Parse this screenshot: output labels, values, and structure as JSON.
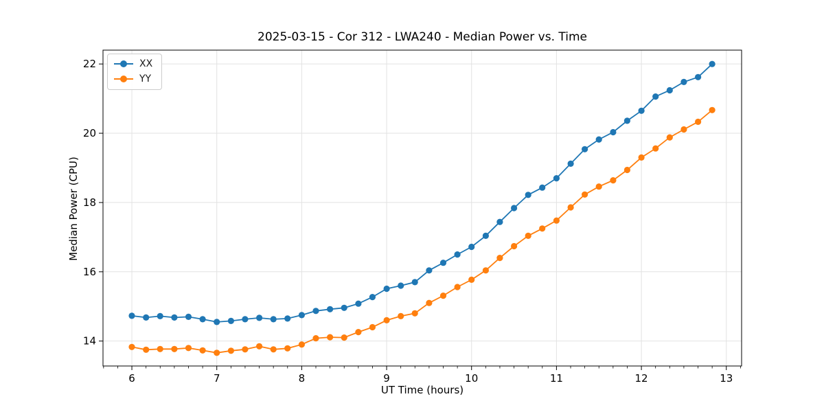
{
  "chart_data": {
    "type": "line",
    "title": "2025-03-15 - Cor 312 - LWA240 - Median Power vs. Time",
    "xlabel": "UT Time (hours)",
    "ylabel": "Median Power (CPU)",
    "xlim": [
      5.66,
      13.18
    ],
    "ylim": [
      13.28,
      22.4
    ],
    "xticks": [
      6,
      7,
      8,
      9,
      10,
      11,
      12,
      13
    ],
    "yticks": [
      14,
      16,
      18,
      20,
      22
    ],
    "x_minor_tick_step": 0.1667,
    "grid": true,
    "grid_color": "#e2e2e2",
    "legend_position": "upper left",
    "x": [
      6.0,
      6.167,
      6.333,
      6.5,
      6.667,
      6.833,
      7.0,
      7.167,
      7.333,
      7.5,
      7.667,
      7.833,
      8.0,
      8.167,
      8.333,
      8.5,
      8.667,
      8.833,
      9.0,
      9.167,
      9.333,
      9.5,
      9.667,
      9.833,
      10.0,
      10.167,
      10.333,
      10.5,
      10.667,
      10.833,
      11.0,
      11.167,
      11.333,
      11.5,
      11.667,
      11.833,
      12.0,
      12.167,
      12.333,
      12.5,
      12.667,
      12.833
    ],
    "series": [
      {
        "name": "XX",
        "color": "#1f77b4",
        "values": [
          14.73,
          14.68,
          14.72,
          14.68,
          14.7,
          14.63,
          14.55,
          14.58,
          14.63,
          14.67,
          14.63,
          14.65,
          14.75,
          14.87,
          14.92,
          14.96,
          15.08,
          15.27,
          15.51,
          15.6,
          15.7,
          16.04,
          16.26,
          16.5,
          16.72,
          17.04,
          17.44,
          17.84,
          18.22,
          18.43,
          18.7,
          19.12,
          19.54,
          19.82,
          20.03,
          20.36,
          20.65,
          21.06,
          21.24,
          21.48,
          21.62,
          22.0
        ]
      },
      {
        "name": "YY",
        "color": "#ff7f0e",
        "values": [
          13.83,
          13.75,
          13.77,
          13.77,
          13.8,
          13.73,
          13.66,
          13.72,
          13.76,
          13.85,
          13.76,
          13.79,
          13.9,
          14.08,
          14.11,
          14.1,
          14.26,
          14.4,
          14.6,
          14.72,
          14.8,
          15.1,
          15.31,
          15.56,
          15.77,
          16.04,
          16.4,
          16.74,
          17.04,
          17.25,
          17.48,
          17.86,
          18.23,
          18.46,
          18.64,
          18.94,
          19.3,
          19.56,
          19.88,
          20.11,
          20.33,
          20.67
        ]
      }
    ]
  }
}
